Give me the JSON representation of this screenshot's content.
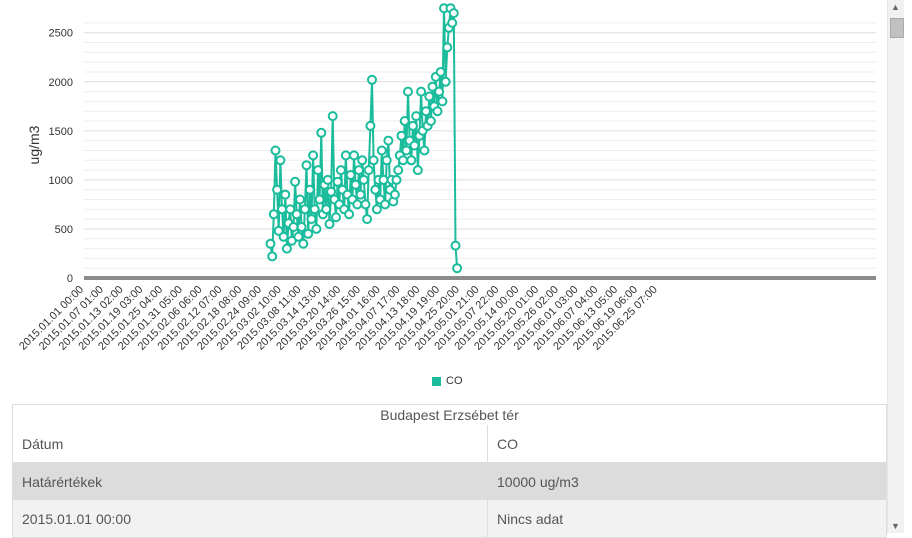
{
  "chart_data": {
    "type": "line",
    "ylabel": "ug/m3",
    "ylim": [
      0,
      2650
    ],
    "yticks": [
      0,
      500,
      1000,
      1500,
      2000,
      2500
    ],
    "xlim": [
      "2015.01.01 00:00",
      "2015.08.31 00:00"
    ],
    "xtick_labels": [
      "2015.01.01 00:00",
      "2015.01.07 01:00",
      "2015.01.13 02:00",
      "2015.01.19 03:00",
      "2015.01.25 04:00",
      "2015.01.31 05:00",
      "2015.02.06 06:00",
      "2015.02.12 07:00",
      "2015.02.18 08:00",
      "2015.02.24 09:00",
      "2015.03.02 10:00",
      "2015.03.08 11:00",
      "2015.03.14 13:00",
      "2015.03.20 14:00",
      "2015.03.26 15:00",
      "2015.04.01 16:00",
      "2015.04.07 17:00",
      "2015.04.13 18:00",
      "2015.04.19 19:00",
      "2015.04.25 20:00",
      "2015.05.01 21:00",
      "2015.05.07 22:00",
      "2015.05.14 00:00",
      "2015.05.20 01:00",
      "2015.05.26 02:00",
      "2015.06.01 03:00",
      "2015.06.07 04:00",
      "2015.06.13 05:00",
      "2015.06.19 06:00",
      "2015.06.25 07:00"
    ],
    "series": [
      {
        "name": "CO",
        "color": "#1abc9c",
        "points": [
          [
            "2015.02.27 00:00",
            350
          ],
          [
            "2015.02.27 12:00",
            220
          ],
          [
            "2015.02.28 00:00",
            650
          ],
          [
            "2015.02.28 12:00",
            1300
          ],
          [
            "2015.03.01 00:00",
            900
          ],
          [
            "2015.03.01 12:00",
            480
          ],
          [
            "2015.03.02 00:00",
            1200
          ],
          [
            "2015.03.02 12:00",
            700
          ],
          [
            "2015.03.03 00:00",
            420
          ],
          [
            "2015.03.03 12:00",
            850
          ],
          [
            "2015.03.04 00:00",
            300
          ],
          [
            "2015.03.04 12:00",
            560
          ],
          [
            "2015.03.05 00:00",
            700
          ],
          [
            "2015.03.05 12:00",
            380
          ],
          [
            "2015.03.06 00:00",
            520
          ],
          [
            "2015.03.06 12:00",
            980
          ],
          [
            "2015.03.07 00:00",
            650
          ],
          [
            "2015.03.07 12:00",
            420
          ],
          [
            "2015.03.08 00:00",
            800
          ],
          [
            "2015.03.08 12:00",
            520
          ],
          [
            "2015.03.09 00:00",
            350
          ],
          [
            "2015.03.09 12:00",
            700
          ],
          [
            "2015.03.10 00:00",
            1150
          ],
          [
            "2015.03.10 12:00",
            450
          ],
          [
            "2015.03.11 00:00",
            900
          ],
          [
            "2015.03.11 12:00",
            600
          ],
          [
            "2015.03.12 00:00",
            1250
          ],
          [
            "2015.03.12 12:00",
            700
          ],
          [
            "2015.03.13 00:00",
            500
          ],
          [
            "2015.03.13 12:00",
            1100
          ],
          [
            "2015.03.14 00:00",
            800
          ],
          [
            "2015.03.14 12:00",
            1480
          ],
          [
            "2015.03.15 00:00",
            650
          ],
          [
            "2015.03.15 12:00",
            950
          ],
          [
            "2015.03.16 00:00",
            700
          ],
          [
            "2015.03.16 12:00",
            1000
          ],
          [
            "2015.03.17 00:00",
            550
          ],
          [
            "2015.03.17 12:00",
            880
          ],
          [
            "2015.03.18 00:00",
            1650
          ],
          [
            "2015.03.18 12:00",
            800
          ],
          [
            "2015.03.19 00:00",
            620
          ],
          [
            "2015.03.19 12:00",
            980
          ],
          [
            "2015.03.20 00:00",
            750
          ],
          [
            "2015.03.20 12:00",
            1100
          ],
          [
            "2015.03.21 00:00",
            900
          ],
          [
            "2015.03.21 12:00",
            700
          ],
          [
            "2015.03.22 00:00",
            1250
          ],
          [
            "2015.03.22 12:00",
            850
          ],
          [
            "2015.03.23 00:00",
            650
          ],
          [
            "2015.03.23 12:00",
            1050
          ],
          [
            "2015.03.24 00:00",
            800
          ],
          [
            "2015.03.24 12:00",
            1250
          ],
          [
            "2015.03.25 00:00",
            950
          ],
          [
            "2015.03.25 12:00",
            750
          ],
          [
            "2015.03.26 00:00",
            1100
          ],
          [
            "2015.03.26 12:00",
            850
          ],
          [
            "2015.03.27 00:00",
            1200
          ],
          [
            "2015.03.27 12:00",
            1000
          ],
          [
            "2015.03.28 00:00",
            750
          ],
          [
            "2015.03.28 12:00",
            600
          ],
          [
            "2015.03.29 00:00",
            1100
          ],
          [
            "2015.03.29 12:00",
            1550
          ],
          [
            "2015.03.30 00:00",
            2020
          ],
          [
            "2015.03.30 12:00",
            1200
          ],
          [
            "2015.03.31 00:00",
            900
          ],
          [
            "2015.03.31 12:00",
            700
          ],
          [
            "2015.04.01 00:00",
            1000
          ],
          [
            "2015.04.01 12:00",
            800
          ],
          [
            "2015.04.02 00:00",
            1300
          ],
          [
            "2015.04.02 12:00",
            1000
          ],
          [
            "2015.04.03 00:00",
            750
          ],
          [
            "2015.04.03 12:00",
            1200
          ],
          [
            "2015.04.04 00:00",
            1400
          ],
          [
            "2015.04.04 12:00",
            900
          ],
          [
            "2015.04.05 00:00",
            1000
          ],
          [
            "2015.04.05 12:00",
            780
          ],
          [
            "2015.04.06 00:00",
            850
          ],
          [
            "2015.04.06 12:00",
            1000
          ],
          [
            "2015.04.07 00:00",
            1100
          ],
          [
            "2015.04.07 12:00",
            1250
          ],
          [
            "2015.04.08 00:00",
            1450
          ],
          [
            "2015.04.08 12:00",
            1200
          ],
          [
            "2015.04.09 00:00",
            1600
          ],
          [
            "2015.04.09 12:00",
            1300
          ],
          [
            "2015.04.10 00:00",
            1900
          ],
          [
            "2015.04.10 12:00",
            1400
          ],
          [
            "2015.04.11 00:00",
            1200
          ],
          [
            "2015.04.11 12:00",
            1550
          ],
          [
            "2015.04.12 00:00",
            1350
          ],
          [
            "2015.04.12 12:00",
            1650
          ],
          [
            "2015.04.13 00:00",
            1100
          ],
          [
            "2015.04.13 12:00",
            1450
          ],
          [
            "2015.04.14 00:00",
            1900
          ],
          [
            "2015.04.14 12:00",
            1500
          ],
          [
            "2015.04.15 00:00",
            1300
          ],
          [
            "2015.04.15 12:00",
            1700
          ],
          [
            "2015.04.16 00:00",
            1550
          ],
          [
            "2015.04.16 12:00",
            1850
          ],
          [
            "2015.04.17 00:00",
            1600
          ],
          [
            "2015.04.17 12:00",
            1950
          ],
          [
            "2015.04.18 00:00",
            1750
          ],
          [
            "2015.04.18 12:00",
            2050
          ],
          [
            "2015.04.19 00:00",
            1700
          ],
          [
            "2015.04.19 12:00",
            1900
          ],
          [
            "2015.04.20 00:00",
            2100
          ],
          [
            "2015.04.20 12:00",
            1800
          ],
          [
            "2015.04.21 00:00",
            2750
          ],
          [
            "2015.04.21 12:00",
            2000
          ],
          [
            "2015.04.22 00:00",
            2350
          ],
          [
            "2015.04.22 12:00",
            2550
          ],
          [
            "2015.04.23 00:00",
            2750
          ],
          [
            "2015.04.23 12:00",
            2600
          ],
          [
            "2015.04.24 00:00",
            2700
          ],
          [
            "2015.04.24 12:00",
            330
          ],
          [
            "2015.04.25 00:00",
            100
          ]
        ]
      }
    ],
    "grid": true,
    "legend": "bottom-center"
  },
  "table": {
    "title": "Budapest Erzsébet tér",
    "headers": [
      "Dátum",
      "CO"
    ],
    "rows": [
      [
        "Határértékek",
        "10000 ug/m3"
      ],
      [
        "2015.01.01 00:00",
        "Nincs adat"
      ]
    ]
  }
}
